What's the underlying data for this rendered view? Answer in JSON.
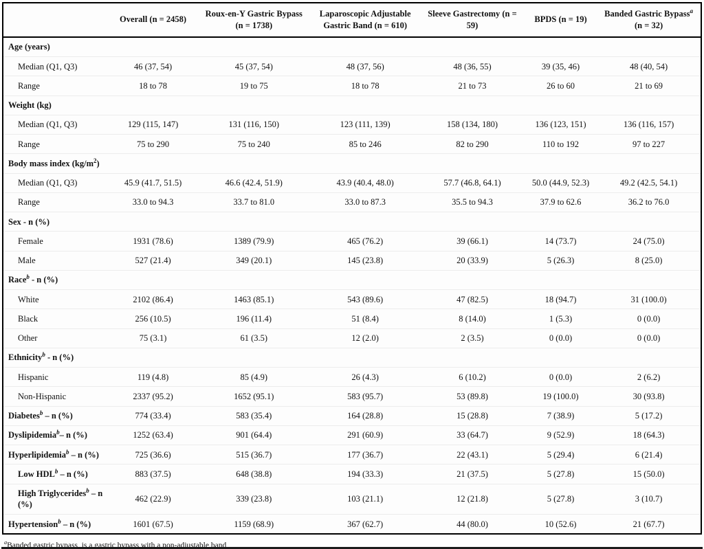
{
  "table": {
    "columns": [
      {
        "pre": ""
      },
      {
        "pre": "Overall (n = 2458)"
      },
      {
        "pre": "Roux-en-Y Gastric Bypass (n = 1738)"
      },
      {
        "pre": "Laparoscopic Adjustable Gastric Band (n = 610)"
      },
      {
        "pre": "Sleeve Gastrectomy (n = 59)"
      },
      {
        "pre": "BPDS (n = 19)"
      },
      {
        "pre": "Banded Gastric Bypass",
        "sup": "a",
        "post": " (n = 32)"
      }
    ],
    "rows": [
      {
        "pre": "Age (years)",
        "bold": true,
        "section": true
      },
      {
        "pre": "Median (Q1, Q3)",
        "indent": true,
        "values": [
          "46 (37, 54)",
          "45 (37, 54)",
          "48 (37, 56)",
          "48 (36, 55)",
          "39 (35, 46)",
          "48 (40, 54)"
        ]
      },
      {
        "pre": "Range",
        "indent": true,
        "values": [
          "18 to 78",
          "19 to 75",
          "18 to 78",
          "21 to 73",
          "26 to 60",
          "21 to 69"
        ]
      },
      {
        "pre": "Weight (kg)",
        "bold": true,
        "section": true
      },
      {
        "pre": "Median (Q1, Q3)",
        "indent": true,
        "values": [
          "129 (115, 147)",
          "131 (116, 150)",
          "123 (111, 139)",
          "158 (134, 180)",
          "136 (123, 151)",
          "136 (116, 157)"
        ]
      },
      {
        "pre": "Range",
        "indent": true,
        "values": [
          "75 to 290",
          "75 to 240",
          "85 to 246",
          "82 to 290",
          "110 to 192",
          "97 to 227"
        ]
      },
      {
        "pre": "Body mass index (kg/m",
        "sup": "2",
        "post": ")",
        "bold": true,
        "section": true
      },
      {
        "pre": "Median (Q1, Q3)",
        "indent": true,
        "values": [
          "45.9 (41.7, 51.5)",
          "46.6 (42.4, 51.9)",
          "43.9 (40.4, 48.0)",
          "57.7 (46.8, 64.1)",
          "50.0 (44.9, 52.3)",
          "49.2 (42.5, 54.1)"
        ]
      },
      {
        "pre": "Range",
        "indent": true,
        "values": [
          "33.0 to 94.3",
          "33.7 to 81.0",
          "33.0 to 87.3",
          "35.5 to 94.3",
          "37.9 to 62.6",
          "36.2 to 76.0"
        ]
      },
      {
        "pre": "Sex - n (%)",
        "bold": true,
        "section": true
      },
      {
        "pre": "Female",
        "indent": true,
        "values": [
          "1931 (78.6)",
          "1389 (79.9)",
          "465 (76.2)",
          "39 (66.1)",
          "14 (73.7)",
          "24 (75.0)"
        ]
      },
      {
        "pre": "Male",
        "indent": true,
        "values": [
          "527 (21.4)",
          "349 (20.1)",
          "145 (23.8)",
          "20 (33.9)",
          "5 (26.3)",
          "8 (25.0)"
        ]
      },
      {
        "pre": "Race",
        "sup": "b",
        "post": " - n (%)",
        "bold": true,
        "section": true
      },
      {
        "pre": "White",
        "indent": true,
        "values": [
          "2102 (86.4)",
          "1463 (85.1)",
          "543 (89.6)",
          "47 (82.5)",
          "18 (94.7)",
          "31 (100.0)"
        ]
      },
      {
        "pre": "Black",
        "indent": true,
        "values": [
          "256 (10.5)",
          "196 (11.4)",
          "51 (8.4)",
          "8 (14.0)",
          "1 (5.3)",
          "0 (0.0)"
        ]
      },
      {
        "pre": "Other",
        "indent": true,
        "values": [
          "75 (3.1)",
          "61 (3.5)",
          "12 (2.0)",
          "2 (3.5)",
          "0 (0.0)",
          "0 (0.0)"
        ]
      },
      {
        "pre": "Ethnicity",
        "sup": "b",
        "post": " - n (%)",
        "bold": true,
        "section": true
      },
      {
        "pre": "Hispanic",
        "indent": true,
        "values": [
          "119 (4.8)",
          "85 (4.9)",
          "26 (4.3)",
          "6 (10.2)",
          "0 (0.0)",
          "2 (6.2)"
        ]
      },
      {
        "pre": "Non-Hispanic",
        "indent": true,
        "values": [
          "2337 (95.2)",
          "1652 (95.1)",
          "583 (95.7)",
          "53 (89.8)",
          "19 (100.0)",
          "30 (93.8)"
        ]
      },
      {
        "pre": "Diabetes",
        "sup": "b",
        "post": " – n (%)",
        "bold": true,
        "values": [
          "774 (33.4)",
          "583 (35.4)",
          "164 (28.8)",
          "15 (28.8)",
          "7 (38.9)",
          "5 (17.2)"
        ]
      },
      {
        "pre": "Dyslipidemia",
        "sup": "b",
        "post": "– n (%)",
        "bold": true,
        "values": [
          "1252 (63.4)",
          "901 (64.4)",
          "291 (60.9)",
          "33 (64.7)",
          "9 (52.9)",
          "18 (64.3)"
        ]
      },
      {
        "pre": "Hyperlipidemia",
        "sup": "b",
        "post": " – n (%)",
        "bold": true,
        "values": [
          "725 (36.6)",
          "515 (36.7)",
          "177 (36.7)",
          "22 (43.1)",
          "5 (29.4)",
          "6 (21.4)"
        ]
      },
      {
        "pre": "Low HDL",
        "sup": "b",
        "post": " – n (%)",
        "bold": true,
        "indent": true,
        "values": [
          "883 (37.5)",
          "648 (38.8)",
          "194 (33.3)",
          "21 (37.5)",
          "5 (27.8)",
          "15 (50.0)"
        ]
      },
      {
        "pre": "High Triglycerides",
        "sup": "b",
        "post": " – n (%)",
        "bold": true,
        "indent": true,
        "values": [
          "462 (22.9)",
          "339 (23.8)",
          "103 (21.1)",
          "12 (21.8)",
          "5 (27.8)",
          "3 (10.7)"
        ]
      },
      {
        "pre": "Hypertension",
        "sup": "b",
        "post": " – n (%)",
        "bold": true,
        "values": [
          "1601 (67.5)",
          "1159 (68.9)",
          "367 (62.7)",
          "44 (80.0)",
          "10 (52.6)",
          "21 (67.7)"
        ]
      }
    ]
  },
  "footnotes": [
    {
      "sup": "a",
      "text": "Banded gastric bypass, is a gastric bypass with a non-adjustable band"
    }
  ]
}
